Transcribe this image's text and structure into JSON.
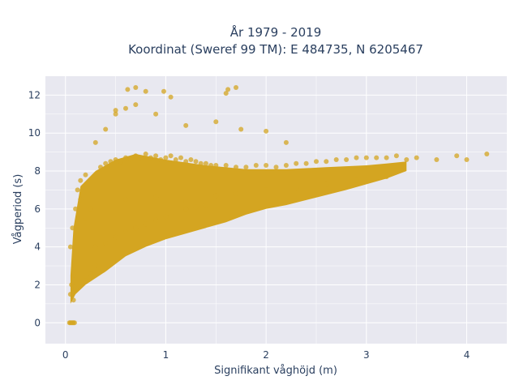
{
  "chart_data": {
    "type": "scatter",
    "title_line1": "År 1979 - 2019",
    "title_line2": "Koordinat (Sweref 99 TM): E 484735, N 6205467",
    "xlabel": "Signifikant våghöjd (m)",
    "ylabel": "Vågperiod (s)",
    "xlim": [
      -0.2,
      4.4
    ],
    "ylim": [
      -1.1,
      13.0
    ],
    "xticks": [
      "0",
      "1",
      "2",
      "3",
      "4"
    ],
    "yticks": [
      "0",
      "2",
      "4",
      "6",
      "8",
      "10",
      "12"
    ],
    "grid": true,
    "legend": "none",
    "colors": {
      "marker": "#d4a521",
      "plot_bg": "#e8e8f0",
      "grid": "#ffffff",
      "text": "#2a3f5f"
    },
    "series": [
      {
        "description_points": "representative sample of the dense point cloud",
        "x": [
          0.05,
          0.06,
          0.08,
          0.1,
          0.05,
          0.07,
          0.1,
          0.12,
          0.15,
          0.08,
          0.1,
          0.2,
          0.25,
          0.3,
          0.15,
          0.2,
          0.35,
          0.4,
          0.45,
          0.5,
          0.55,
          0.6,
          0.65,
          0.7,
          0.75,
          0.8,
          0.85,
          0.9,
          0.95,
          1.0,
          1.05,
          1.1,
          1.15,
          1.2,
          1.25,
          1.3,
          1.35,
          1.4,
          1.45,
          1.5,
          1.6,
          1.7,
          1.8,
          1.9,
          2.0,
          2.1,
          2.2,
          2.3,
          2.4,
          2.5,
          2.6,
          2.7,
          2.8,
          2.9,
          3.0,
          3.1,
          3.2,
          3.3,
          3.4,
          3.5,
          3.7,
          3.9,
          4.0,
          4.2,
          0.3,
          0.4,
          0.5,
          0.6,
          0.7,
          0.8,
          0.9,
          1.0,
          1.1,
          1.2,
          1.3,
          1.4,
          0.3,
          0.4,
          0.5,
          0.7,
          0.9,
          1.2,
          1.5,
          1.75,
          2.0,
          2.2,
          0.5,
          0.6,
          0.7,
          0.8,
          1.6,
          1.7,
          1.62,
          0.62,
          0.98,
          1.05,
          0.04,
          0.05,
          0.06,
          0.07,
          0.08,
          0.09,
          0.2,
          0.25,
          0.6,
          0.9,
          1.2,
          1.5,
          1.7,
          2.0,
          2.3,
          2.6,
          2.9,
          3.2
        ],
        "y": [
          1.5,
          2.0,
          2.5,
          3.0,
          4.0,
          5.0,
          6.0,
          7.0,
          7.5,
          1.2,
          1.8,
          2.2,
          2.6,
          3.0,
          6.5,
          7.8,
          8.2,
          8.4,
          8.5,
          8.6,
          8.5,
          8.7,
          8.6,
          8.8,
          8.7,
          8.9,
          8.7,
          8.8,
          8.6,
          8.7,
          8.8,
          8.6,
          8.7,
          8.5,
          8.6,
          8.5,
          8.4,
          8.4,
          8.3,
          8.3,
          8.3,
          8.2,
          8.2,
          8.3,
          8.3,
          8.2,
          8.3,
          8.4,
          8.4,
          8.5,
          8.5,
          8.6,
          8.6,
          8.7,
          8.7,
          8.7,
          8.7,
          8.8,
          8.6,
          8.7,
          8.6,
          8.8,
          8.6,
          8.9,
          4.0,
          4.2,
          4.5,
          4.8,
          5.0,
          5.2,
          5.4,
          5.6,
          5.8,
          6.0,
          6.1,
          6.2,
          9.5,
          10.2,
          11.2,
          11.5,
          11.0,
          10.4,
          10.6,
          10.2,
          10.1,
          9.5,
          11.0,
          11.3,
          12.4,
          12.2,
          12.1,
          12.4,
          12.3,
          12.3,
          12.2,
          11.9,
          0.0,
          0.0,
          0.0,
          0.0,
          0.0,
          0.0,
          5.5,
          6.0,
          6.5,
          6.6,
          6.4,
          6.7,
          6.8,
          7.0,
          7.1,
          7.3,
          7.5,
          7.7
        ]
      }
    ]
  }
}
